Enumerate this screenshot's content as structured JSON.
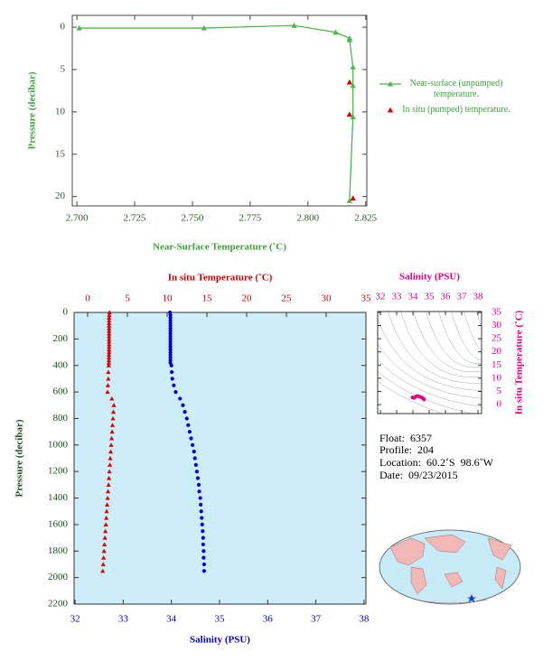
{
  "chart_data": [
    {
      "type": "line",
      "x_label": "Near-Surface Temperature (˚C)",
      "y_label": "Pressure (decibar)",
      "xlim": [
        2.698,
        2.8255
      ],
      "ylim": [
        -1.4,
        21.1
      ],
      "y_inverted": true,
      "xticks": [
        {
          "value": 2.7,
          "label": "2.700"
        },
        2.725,
        {
          "value": 2.75,
          "label": "2.750"
        },
        2.775,
        {
          "value": 2.8,
          "label": "2.800"
        },
        2.825
      ],
      "yticks": [
        0,
        5,
        10,
        15,
        20
      ],
      "tick_color": "#2b5a2b",
      "label_color": "#3aa53a",
      "legend": "right",
      "series": [
        {
          "name": "Near-surface (unpumped) temperature.",
          "color": "#4cb84c",
          "line": true,
          "x": [
            2.701,
            2.755,
            2.794,
            2.812,
            2.818,
            2.818,
            2.8195,
            2.8195,
            2.8195,
            2.818
          ],
          "values": [
            0.1,
            0.1,
            -0.2,
            0.6,
            1.3,
            1.5,
            4.7,
            6.9,
            10.6,
            20.5
          ]
        },
        {
          "name": "In situ (pumped) temperature.",
          "color": "#e00000",
          "line": false,
          "x": [
            2.818,
            2.818,
            2.8195
          ],
          "values": [
            6.5,
            10.3,
            20.2
          ]
        }
      ]
    },
    {
      "type": "scatter",
      "y_label": "Pressure (decibar)",
      "x_label": "Salinity (PSU)",
      "x2_label": "In situ Temperature (˚C)",
      "ylim": [
        0,
        2200
      ],
      "y_inverted": true,
      "yticks": [
        0,
        200,
        400,
        600,
        800,
        1000,
        1200,
        1400,
        1600,
        1800,
        2000,
        2200
      ],
      "xlim": [
        31.98,
        38.04
      ],
      "xticks": [
        32,
        33,
        34,
        35,
        36,
        37,
        38
      ],
      "x2lim": [
        -1.7,
        35
      ],
      "x2ticks": [
        0,
        5,
        10,
        15,
        20,
        25,
        30,
        35
      ],
      "y_color": "#1f4f1f",
      "x_color": "#0000c8",
      "x2_color": "#d40000",
      "background": "#cdeef8",
      "pressure": [
        0,
        20,
        40,
        60,
        80,
        100,
        120,
        140,
        160,
        180,
        200,
        220,
        240,
        260,
        280,
        300,
        320,
        340,
        360,
        380,
        400,
        450,
        500,
        550,
        600,
        650,
        700,
        750,
        800,
        850,
        900,
        950,
        1000,
        1050,
        1100,
        1150,
        1200,
        1250,
        1300,
        1350,
        1400,
        1450,
        1500,
        1550,
        1600,
        1650,
        1700,
        1750,
        1800,
        1850,
        1900,
        1950
      ],
      "series": [
        {
          "color": "#e00000",
          "marker": "triangle",
          "axis": "x2",
          "x": [
            2.75,
            2.72,
            2.7,
            2.7,
            2.7,
            2.7,
            2.7,
            2.7,
            2.7,
            2.7,
            2.7,
            2.7,
            2.7,
            2.7,
            2.7,
            2.7,
            2.68,
            2.68,
            2.68,
            2.67,
            2.65,
            2.6,
            2.6,
            2.55,
            2.5,
            3.05,
            3.3,
            3.24,
            3.19,
            3.13,
            3.08,
            3.02,
            2.96,
            2.91,
            2.85,
            2.8,
            2.74,
            2.68,
            2.63,
            2.57,
            2.52,
            2.46,
            2.4,
            2.35,
            2.29,
            2.24,
            2.18,
            2.12,
            2.07,
            2.01,
            1.96,
            1.9
          ]
        },
        {
          "color": "#0000e0",
          "marker": "circle",
          "axis": "x",
          "x": [
            33.97,
            33.98,
            33.98,
            33.98,
            33.98,
            33.98,
            33.98,
            33.98,
            33.98,
            33.98,
            33.98,
            33.98,
            33.98,
            33.98,
            33.98,
            33.98,
            33.98,
            33.98,
            33.98,
            33.98,
            34.0,
            34.01,
            34.02,
            34.05,
            34.09,
            34.18,
            34.24,
            34.28,
            34.32,
            34.35,
            34.38,
            34.41,
            34.44,
            34.47,
            34.49,
            34.51,
            34.53,
            34.55,
            34.57,
            34.58,
            34.6,
            34.61,
            34.62,
            34.63,
            34.64,
            34.65,
            34.66,
            34.66,
            34.67,
            34.67,
            34.68,
            34.68
          ]
        }
      ]
    },
    {
      "type": "ts-diagram",
      "x_label": "Salinity (PSU)",
      "y_label": "In situ Temperature (˚C)",
      "xlim": [
        31.83,
        38.22
      ],
      "xticks": [
        32,
        33,
        34,
        35,
        36,
        37,
        38
      ],
      "ylim": [
        -3.4,
        35.3
      ],
      "yticks": [
        0,
        5,
        10,
        15,
        20,
        25,
        30,
        35
      ],
      "color": "#e6007e"
    }
  ],
  "float_info": {
    "float": "Float:  6357",
    "profile": "Profile:  204",
    "location": "Location:  60.2˚S  98.6˚W",
    "date": "Date:  09/23/2015"
  }
}
